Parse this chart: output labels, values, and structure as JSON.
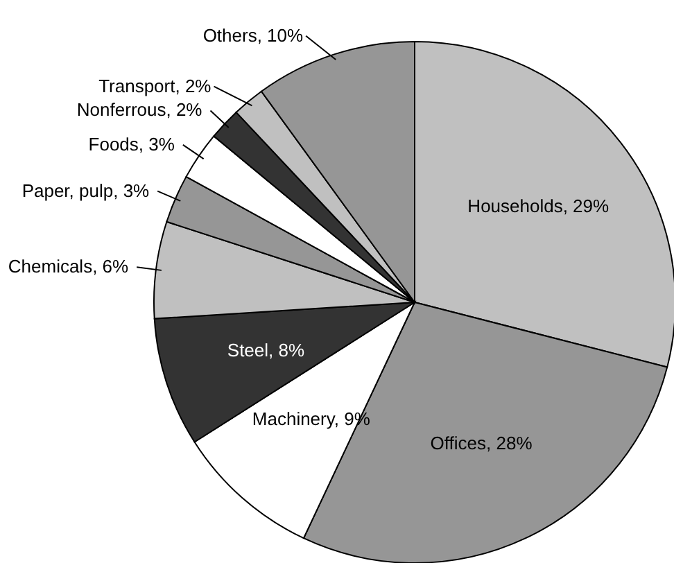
{
  "chart_data": {
    "type": "pie",
    "categories": [
      "Households",
      "Offices",
      "Machinery",
      "Steel",
      "Chemicals",
      "Paper, pulp",
      "Foods",
      "Nonferrous",
      "Transport",
      "Others"
    ],
    "values": [
      29,
      28,
      9,
      8,
      6,
      3,
      3,
      2,
      2,
      10
    ],
    "value_labels": [
      "29%",
      "28%",
      "9%",
      "8%",
      "6%",
      "3%",
      "3%",
      "2%",
      "2%",
      "10%"
    ],
    "colors": [
      "#c0c0c0",
      "#969696",
      "#ffffff",
      "#333333",
      "#c0c0c0",
      "#969696",
      "#ffffff",
      "#333333",
      "#c0c0c0",
      "#969696"
    ]
  }
}
